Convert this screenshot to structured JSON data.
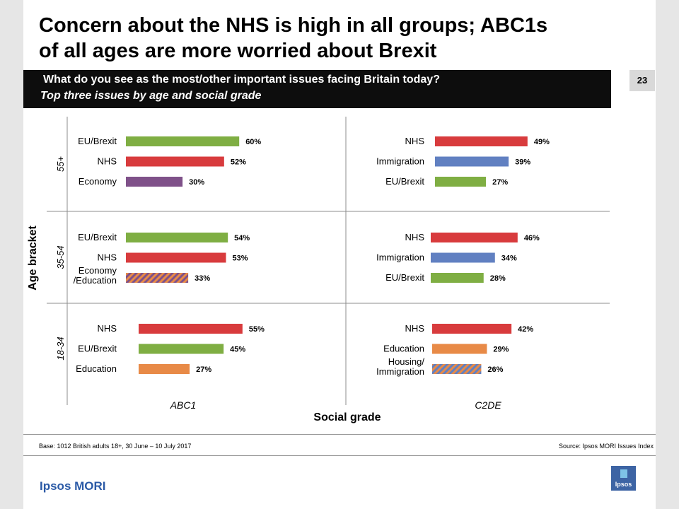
{
  "header": {
    "title_line1": "Concern about the NHS is high in all groups; ABC1s",
    "title_line2": "of all ages are more worried about Brexit",
    "question": "What do you see as the most/other important issues facing Britain today?",
    "question_sub": "Top three issues by age and social grade",
    "page_number": "23"
  },
  "colors": {
    "nhs": "#d83b3d",
    "eu_brexit": "#7fae43",
    "immigration": "#6180c1",
    "economy": "#7f5189",
    "education": "#e88a47",
    "hatch_a": "#7f5189",
    "hatch_b": "#e88a47",
    "hatch_c": "#6180c1",
    "hatch_d": "#e88a47"
  },
  "chart_data": {
    "type": "bar",
    "xlabel": "Social grade",
    "ylabel": "Age bracket",
    "columns": [
      "ABC1",
      "C2DE"
    ],
    "rows": [
      "55+",
      "35-54",
      "18-34"
    ],
    "value_unit": "%",
    "panels": [
      {
        "age": "55+",
        "grade": "ABC1",
        "bars": [
          {
            "label": "EU/Brexit",
            "value": 60,
            "color_key": "eu_brexit"
          },
          {
            "label": "NHS",
            "value": 52,
            "color_key": "nhs"
          },
          {
            "label": "Economy",
            "value": 30,
            "color_key": "economy"
          }
        ]
      },
      {
        "age": "55+",
        "grade": "C2DE",
        "bars": [
          {
            "label": "NHS",
            "value": 49,
            "color_key": "nhs"
          },
          {
            "label": "Immigration",
            "value": 39,
            "color_key": "immigration"
          },
          {
            "label": "EU/Brexit",
            "value": 27,
            "color_key": "eu_brexit"
          }
        ]
      },
      {
        "age": "35-54",
        "grade": "ABC1",
        "bars": [
          {
            "label": "EU/Brexit",
            "value": 54,
            "color_key": "eu_brexit"
          },
          {
            "label": "NHS",
            "value": 53,
            "color_key": "nhs"
          },
          {
            "label": "Economy\n/Education",
            "value": 33,
            "color_key": "hatch_economy_education"
          }
        ]
      },
      {
        "age": "35-54",
        "grade": "C2DE",
        "bars": [
          {
            "label": "NHS",
            "value": 46,
            "color_key": "nhs"
          },
          {
            "label": "Immigration",
            "value": 34,
            "color_key": "immigration"
          },
          {
            "label": "EU/Brexit",
            "value": 28,
            "color_key": "eu_brexit"
          }
        ]
      },
      {
        "age": "18-34",
        "grade": "ABC1",
        "bars": [
          {
            "label": "NHS",
            "value": 55,
            "color_key": "nhs"
          },
          {
            "label": "EU/Brexit",
            "value": 45,
            "color_key": "eu_brexit"
          },
          {
            "label": "Education",
            "value": 27,
            "color_key": "education"
          }
        ]
      },
      {
        "age": "18-34",
        "grade": "C2DE",
        "bars": [
          {
            "label": "NHS",
            "value": 42,
            "color_key": "nhs"
          },
          {
            "label": "Education",
            "value": 29,
            "color_key": "education"
          },
          {
            "label": "Housing/\nImmigration",
            "value": 26,
            "color_key": "hatch_housing_immigration"
          }
        ]
      }
    ]
  },
  "footer": {
    "base": "Base: 1012 British adults 18+, 30 June – 10 July  2017",
    "source": "Source: Ipsos MORI Issues Index",
    "brand": "Ipsos MORI",
    "logo_text": "Ipsos"
  }
}
